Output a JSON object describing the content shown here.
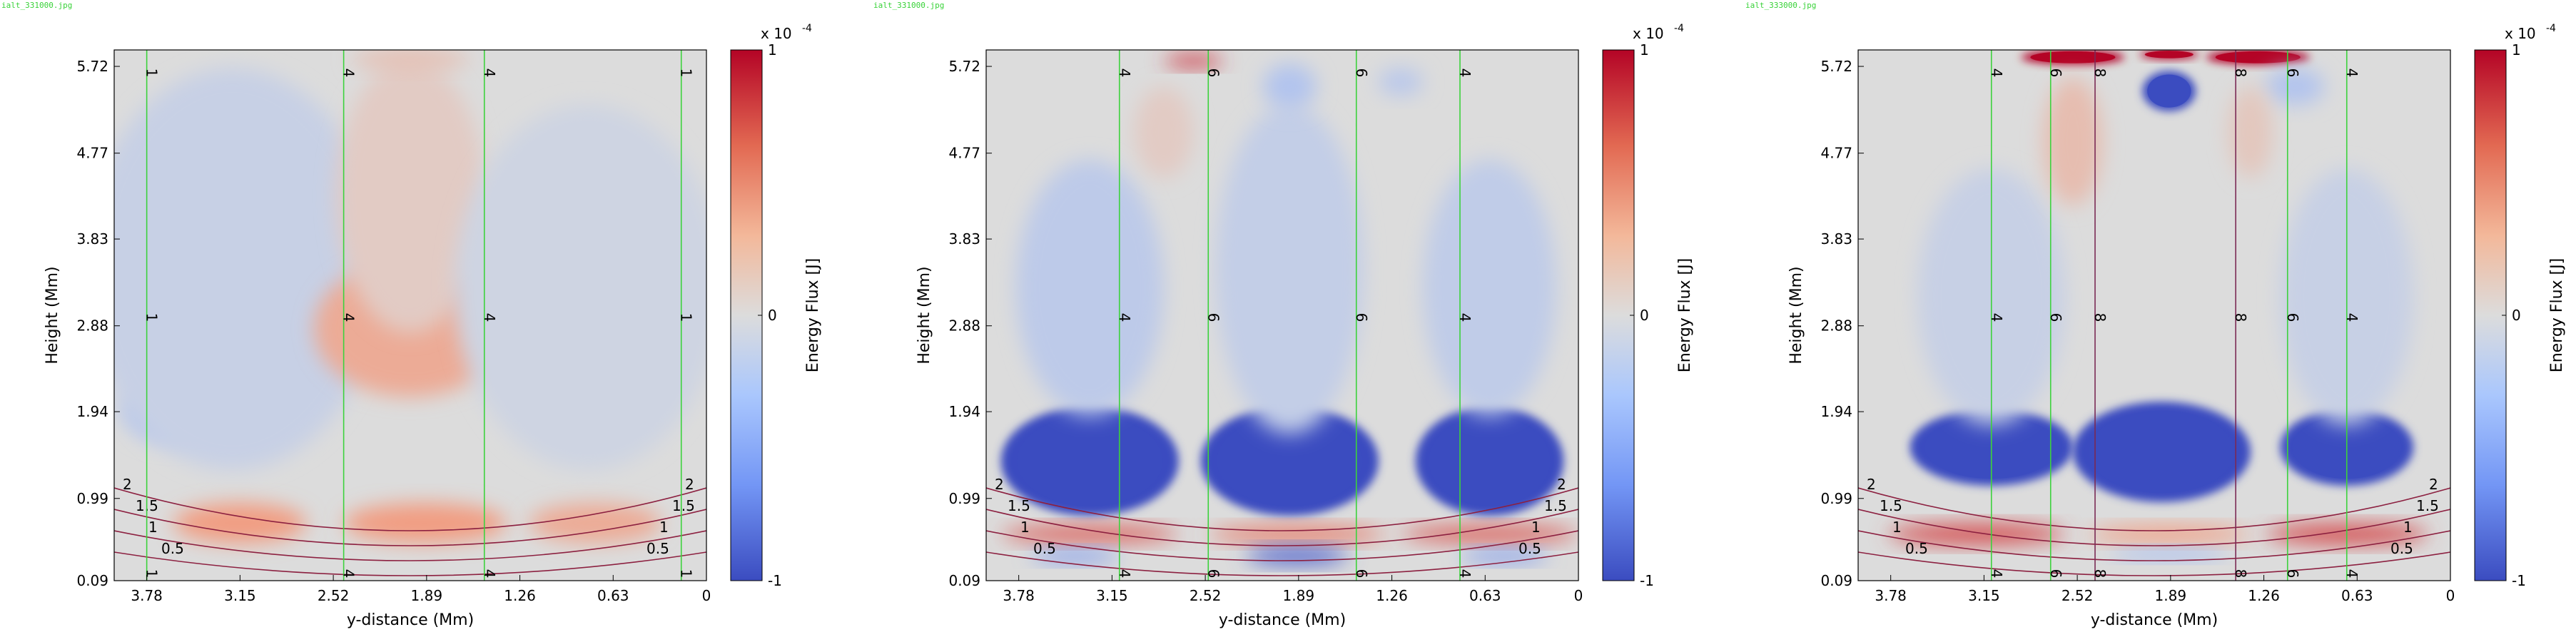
{
  "chart_data": [
    {
      "type": "heatmap",
      "file_label": "ialt_331000.jpg",
      "xlabel": "y-distance (Mm)",
      "ylabel": "Height (Mm)",
      "x_ticks": [
        "3.78",
        "3.15",
        "2.52",
        "1.89",
        "1.26",
        "0.63",
        "0"
      ],
      "y_ticks": [
        "5.72",
        "4.77",
        "3.83",
        "2.88",
        "1.94",
        "0.99",
        "0.09"
      ],
      "xlim": [
        4.0,
        0
      ],
      "ylim": [
        0.09,
        5.9
      ],
      "colorbar": {
        "label": "Energy Flux [J]",
        "multiplier": "x 10",
        "exponent": "-4",
        "max": "1",
        "mid": "0",
        "min": "-1"
      },
      "field_lines": [
        {
          "x": 3.78,
          "label": "1",
          "color": "#3cd23c"
        },
        {
          "x": 2.45,
          "label": "4",
          "color": "#3cd23c"
        },
        {
          "x": 1.5,
          "label": "4",
          "color": "#3cd23c"
        },
        {
          "x": 0.17,
          "label": "1",
          "color": "#3cd23c"
        }
      ],
      "bottom_contours": [
        {
          "level": "2"
        },
        {
          "level": "1.5"
        },
        {
          "level": "1"
        },
        {
          "level": "0.5"
        }
      ],
      "blobs": [
        {
          "x": 3.6,
          "y": 1.95,
          "rx": 0.35,
          "ry": 0.35,
          "value": -0.28
        },
        {
          "x": 3.2,
          "y": 3.5,
          "rx": 1.0,
          "ry": 2.2,
          "value": -0.15
        },
        {
          "x": 2.0,
          "y": 2.85,
          "rx": 0.65,
          "ry": 0.75,
          "value": 0.35
        },
        {
          "x": 2.0,
          "y": 4.3,
          "rx": 0.5,
          "ry": 1.5,
          "value": 0.12
        },
        {
          "x": 0.8,
          "y": 3.3,
          "rx": 0.9,
          "ry": 2.0,
          "value": -0.1
        },
        {
          "x": 3.15,
          "y": 0.72,
          "rx": 0.45,
          "ry": 0.22,
          "value": 0.45
        },
        {
          "x": 1.9,
          "y": 0.72,
          "rx": 0.55,
          "ry": 0.22,
          "value": 0.45
        },
        {
          "x": 0.75,
          "y": 0.72,
          "rx": 0.45,
          "ry": 0.22,
          "value": 0.35
        },
        {
          "x": 2.0,
          "y": 5.8,
          "rx": 0.4,
          "ry": 0.12,
          "value": 0.2
        }
      ]
    },
    {
      "type": "heatmap",
      "file_label": "ialt_331000.jpg",
      "xlabel": "y-distance (Mm)",
      "ylabel": "Height (Mm)",
      "x_ticks": [
        "3.78",
        "3.15",
        "2.52",
        "1.89",
        "1.26",
        "0.63",
        "0"
      ],
      "y_ticks": [
        "5.72",
        "4.77",
        "3.83",
        "2.88",
        "1.94",
        "0.99",
        "0.09"
      ],
      "xlim": [
        4.0,
        0
      ],
      "ylim": [
        0.09,
        5.9
      ],
      "colorbar": {
        "label": "Energy Flux [J]",
        "multiplier": "x 10",
        "exponent": "-4",
        "max": "1",
        "mid": "0",
        "min": "-1"
      },
      "field_lines": [
        {
          "x": 3.1,
          "label": "4",
          "color": "#3cd23c"
        },
        {
          "x": 2.5,
          "label": "6",
          "color": "#3cd23c"
        },
        {
          "x": 1.5,
          "label": "6",
          "color": "#3cd23c"
        },
        {
          "x": 0.8,
          "label": "4",
          "color": "#3cd23c"
        }
      ],
      "bottom_contours": [
        {
          "level": "2"
        },
        {
          "level": "1.5"
        },
        {
          "level": "1"
        },
        {
          "level": "0.5"
        }
      ],
      "blobs": [
        {
          "x": 3.3,
          "y": 1.4,
          "rx": 0.6,
          "ry": 0.6,
          "value": -1.3
        },
        {
          "x": 1.95,
          "y": 1.4,
          "rx": 0.6,
          "ry": 0.6,
          "value": -1.3
        },
        {
          "x": 0.6,
          "y": 1.4,
          "rx": 0.5,
          "ry": 0.6,
          "value": -1.3
        },
        {
          "x": 3.3,
          "y": 3.3,
          "rx": 0.5,
          "ry": 1.4,
          "value": -0.22
        },
        {
          "x": 1.95,
          "y": 3.5,
          "rx": 0.5,
          "ry": 1.8,
          "value": -0.18
        },
        {
          "x": 0.6,
          "y": 3.3,
          "rx": 0.45,
          "ry": 1.4,
          "value": -0.2
        },
        {
          "x": 3.3,
          "y": 0.6,
          "rx": 0.6,
          "ry": 0.09,
          "value": 0.7
        },
        {
          "x": 1.9,
          "y": 0.6,
          "rx": 0.6,
          "ry": 0.09,
          "value": 0.6
        },
        {
          "x": 0.6,
          "y": 0.6,
          "rx": 0.6,
          "ry": 0.09,
          "value": 0.7
        },
        {
          "x": 1.9,
          "y": 0.36,
          "rx": 0.35,
          "ry": 0.09,
          "value": -0.9
        },
        {
          "x": 3.4,
          "y": 0.36,
          "rx": 0.3,
          "ry": 0.07,
          "value": -0.6
        },
        {
          "x": 0.5,
          "y": 0.36,
          "rx": 0.3,
          "ry": 0.07,
          "value": -0.6
        },
        {
          "x": 2.6,
          "y": 5.78,
          "rx": 0.2,
          "ry": 0.07,
          "value": 0.8
        },
        {
          "x": 1.95,
          "y": 5.5,
          "rx": 0.18,
          "ry": 0.25,
          "value": -0.3
        },
        {
          "x": 1.2,
          "y": 5.55,
          "rx": 0.15,
          "ry": 0.15,
          "value": -0.25
        },
        {
          "x": 2.8,
          "y": 5.0,
          "rx": 0.2,
          "ry": 0.5,
          "value": 0.12
        }
      ]
    },
    {
      "type": "heatmap",
      "file_label": "ialt_333000.jpg",
      "xlabel": "y-distance (Mm)",
      "ylabel": "Height (Mm)",
      "x_ticks": [
        "3.78",
        "3.15",
        "2.52",
        "1.89",
        "1.26",
        "0.63",
        "0"
      ],
      "y_ticks": [
        "5.72",
        "4.77",
        "3.83",
        "2.88",
        "1.94",
        "0.99",
        "0.09"
      ],
      "xlim": [
        4.0,
        0
      ],
      "ylim": [
        0.09,
        5.9
      ],
      "colorbar": {
        "label": "Energy Flux [J]",
        "multiplier": "x 10",
        "exponent": "-4",
        "max": "1",
        "mid": "0",
        "min": "-1"
      },
      "field_lines": [
        {
          "x": 3.1,
          "label": "4",
          "color": "#3cd23c"
        },
        {
          "x": 2.7,
          "label": "6",
          "color": "#3cd23c"
        },
        {
          "x": 2.4,
          "label": "8",
          "color": "#7a2a55"
        },
        {
          "x": 1.45,
          "label": "8",
          "color": "#7a2a55"
        },
        {
          "x": 1.1,
          "label": "6",
          "color": "#3cd23c"
        },
        {
          "x": 0.7,
          "label": "4",
          "color": "#3cd23c"
        }
      ],
      "bottom_contours": [
        {
          "level": "2"
        },
        {
          "level": "1.5"
        },
        {
          "level": "1"
        },
        {
          "level": "0.5"
        }
      ],
      "blobs": [
        {
          "x": 3.1,
          "y": 1.55,
          "rx": 0.55,
          "ry": 0.42,
          "value": -1.2
        },
        {
          "x": 1.95,
          "y": 1.5,
          "rx": 0.6,
          "ry": 0.55,
          "value": -1.3
        },
        {
          "x": 0.7,
          "y": 1.55,
          "rx": 0.45,
          "ry": 0.42,
          "value": -1.2
        },
        {
          "x": 3.1,
          "y": 3.2,
          "rx": 0.5,
          "ry": 1.4,
          "value": -0.15
        },
        {
          "x": 0.7,
          "y": 3.2,
          "rx": 0.45,
          "ry": 1.4,
          "value": -0.15
        },
        {
          "x": 3.2,
          "y": 0.6,
          "rx": 0.6,
          "ry": 0.11,
          "value": 0.75
        },
        {
          "x": 0.7,
          "y": 0.6,
          "rx": 0.55,
          "ry": 0.11,
          "value": 0.75
        },
        {
          "x": 1.9,
          "y": 0.6,
          "rx": 0.55,
          "ry": 0.09,
          "value": 0.45
        },
        {
          "x": 1.9,
          "y": 0.38,
          "rx": 0.4,
          "ry": 0.06,
          "value": -0.4
        },
        {
          "x": 2.55,
          "y": 5.82,
          "rx": 0.35,
          "ry": 0.08,
          "value": 1.4
        },
        {
          "x": 1.9,
          "y": 5.85,
          "rx": 0.2,
          "ry": 0.05,
          "value": 1.4
        },
        {
          "x": 1.3,
          "y": 5.82,
          "rx": 0.35,
          "ry": 0.08,
          "value": 1.4
        },
        {
          "x": 1.9,
          "y": 5.45,
          "rx": 0.18,
          "ry": 0.22,
          "value": -1.1
        },
        {
          "x": 1.05,
          "y": 5.5,
          "rx": 0.2,
          "ry": 0.2,
          "value": -0.3
        },
        {
          "x": 2.55,
          "y": 4.9,
          "rx": 0.2,
          "ry": 0.7,
          "value": 0.22
        },
        {
          "x": 1.35,
          "y": 5.0,
          "rx": 0.15,
          "ry": 0.5,
          "value": 0.15
        }
      ]
    }
  ]
}
